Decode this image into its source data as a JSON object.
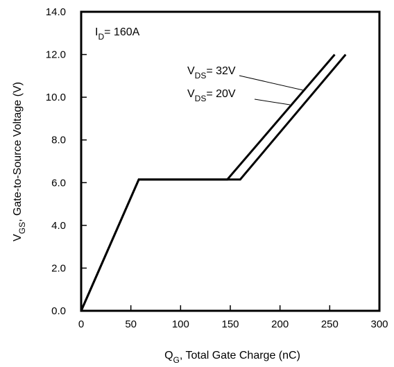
{
  "chart_data": {
    "type": "line",
    "xlabel": {
      "main": "Q",
      "sub": "G",
      "rest": ",  Total Gate Charge (nC)"
    },
    "ylabel": {
      "main": "V",
      "sub": "GS",
      "rest": ", Gate-to-Source Voltage (V)"
    },
    "xlim": [
      0,
      300
    ],
    "ylim": [
      0,
      14
    ],
    "xticks": [
      0,
      50,
      100,
      150,
      200,
      250,
      300
    ],
    "yticks": [
      0.0,
      2.0,
      4.0,
      6.0,
      8.0,
      10.0,
      12.0,
      14.0
    ],
    "xtick_labels": [
      "0",
      "50",
      "100",
      "150",
      "200",
      "250",
      "300"
    ],
    "ytick_labels": [
      "0.0",
      "2.0",
      "4.0",
      "6.0",
      "8.0",
      "10.0",
      "12.0",
      "14.0"
    ],
    "grid": false,
    "annotations": {
      "id": {
        "main": "I",
        "sub": "D",
        "rest": "= 160A"
      },
      "vds32": {
        "main": "V",
        "sub": "DS",
        "rest": "= 32V"
      },
      "vds20": {
        "main": "V",
        "sub": "DS",
        "rest": "= 20V"
      }
    },
    "series": [
      {
        "x": [
          0,
          58,
          147,
          255
        ],
        "y": [
          0,
          6.15,
          6.15,
          12.0
        ]
      },
      {
        "x": [
          0,
          58,
          160,
          266
        ],
        "y": [
          0,
          6.15,
          6.15,
          12.0
        ]
      }
    ]
  }
}
